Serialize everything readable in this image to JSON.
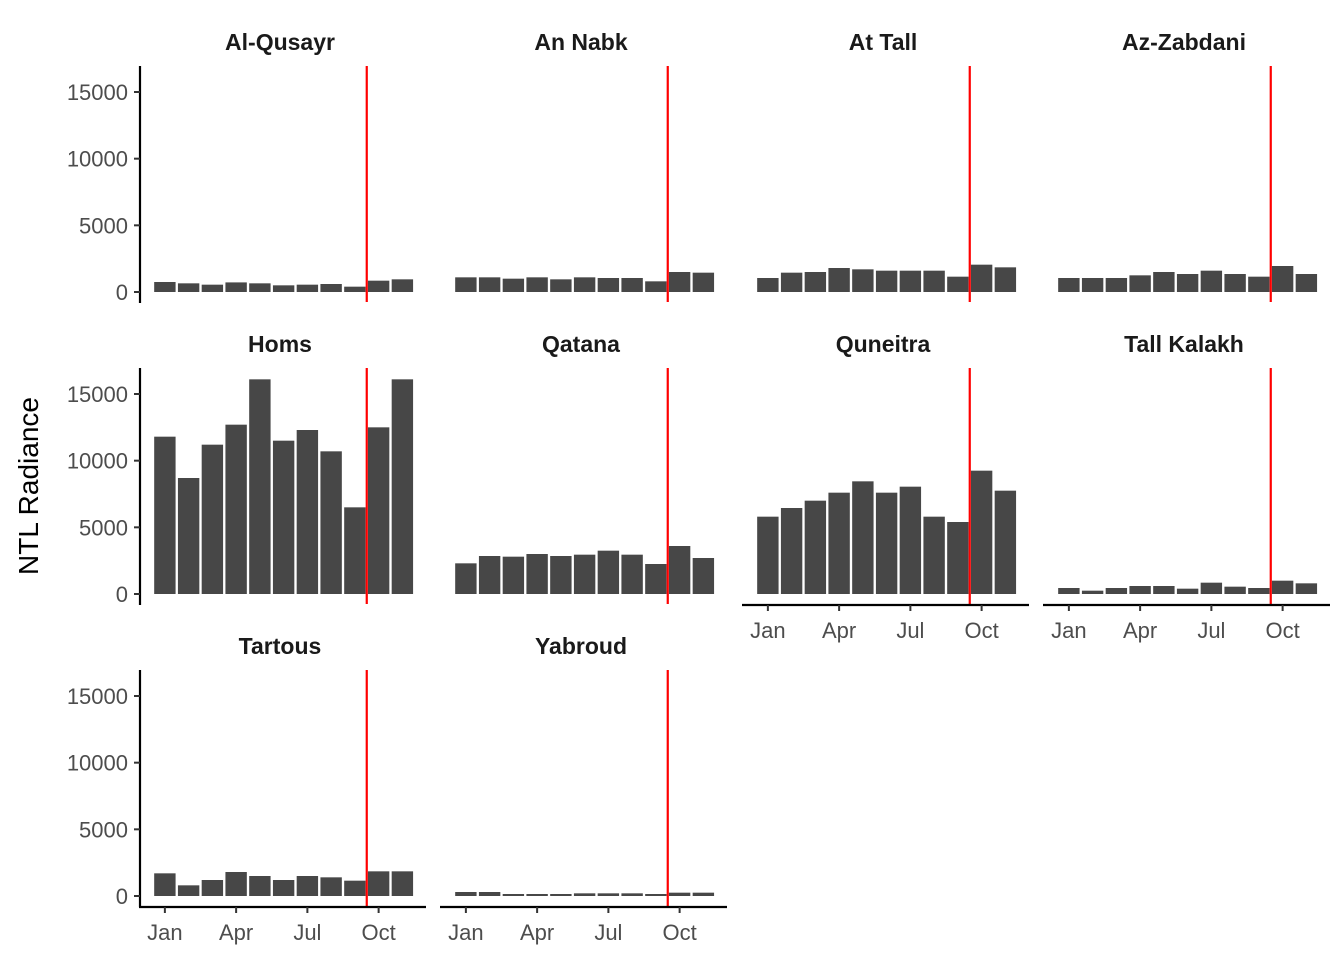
{
  "chart_data": {
    "type": "bar",
    "layout": "facet grid, 4 columns, 3 rows, shared y axis",
    "ylabel": "NTL Radiance",
    "xlabel": "",
    "ylim": [
      0,
      16800
    ],
    "y_ticks": [
      0,
      5000,
      10000,
      15000
    ],
    "x_ticks": [
      "Jan",
      "Apr",
      "Jul",
      "Oct"
    ],
    "x_tick_months": [
      1,
      4,
      7,
      10
    ],
    "months": [
      1,
      2,
      3,
      4,
      5,
      6,
      7,
      8,
      9,
      10,
      11
    ],
    "reference_line_month": 9,
    "colors": {
      "bar": "#474747",
      "reference_line": "#ff0000",
      "axis": "#000000"
    },
    "panels": [
      {
        "name": "Al-Qusayr",
        "values": [
          750,
          650,
          550,
          720,
          650,
          500,
          550,
          600,
          400,
          850,
          950
        ]
      },
      {
        "name": "An Nabk",
        "values": [
          1100,
          1100,
          1000,
          1100,
          950,
          1100,
          1050,
          1050,
          800,
          1500,
          1450
        ]
      },
      {
        "name": "At Tall",
        "values": [
          1050,
          1450,
          1500,
          1800,
          1700,
          1600,
          1600,
          1600,
          1150,
          2050,
          1850
        ]
      },
      {
        "name": "Az-Zabdani",
        "values": [
          1050,
          1050,
          1050,
          1250,
          1500,
          1350,
          1600,
          1350,
          1150,
          1950,
          1350
        ]
      },
      {
        "name": "Homs",
        "values": [
          11800,
          8700,
          11200,
          12700,
          16100,
          11500,
          12300,
          10700,
          6500,
          12500,
          16100
        ]
      },
      {
        "name": "Qatana",
        "values": [
          2300,
          2850,
          2800,
          3000,
          2850,
          2950,
          3250,
          2950,
          2250,
          3600,
          2700
        ]
      },
      {
        "name": "Quneitra",
        "values": [
          5800,
          6450,
          7000,
          7600,
          8450,
          7600,
          8050,
          5800,
          5400,
          9250,
          7750
        ]
      },
      {
        "name": "Tall Kalakh",
        "values": [
          450,
          250,
          450,
          600,
          600,
          400,
          850,
          550,
          450,
          1000,
          800
        ]
      },
      {
        "name": "Tartous",
        "values": [
          1700,
          800,
          1200,
          1800,
          1500,
          1200,
          1500,
          1400,
          1150,
          1850,
          1850
        ]
      },
      {
        "name": "Yabroud",
        "values": [
          300,
          300,
          150,
          150,
          150,
          200,
          200,
          200,
          150,
          250,
          250
        ]
      }
    ]
  }
}
